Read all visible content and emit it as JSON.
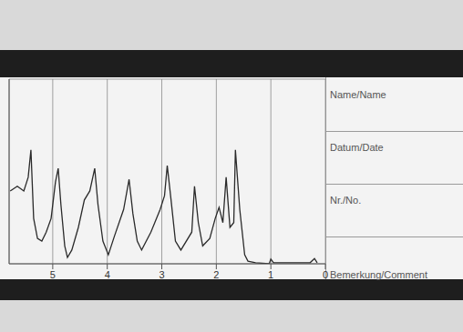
{
  "chart_data": {
    "type": "line",
    "xlim": [
      5.8,
      0
    ],
    "xticks": [
      5,
      4,
      3,
      2,
      1,
      0
    ],
    "ylim": [
      0,
      3.5
    ],
    "yticks": [
      0,
      1,
      2,
      3
    ],
    "grid": true,
    "tick_labels": "x",
    "color": "#2a2a2a",
    "x": [
      5.78,
      5.65,
      5.53,
      5.45,
      5.4,
      5.35,
      5.28,
      5.2,
      5.12,
      5.03,
      4.95,
      4.9,
      4.85,
      4.78,
      4.73,
      4.65,
      4.53,
      4.42,
      4.32,
      4.23,
      4.17,
      4.08,
      3.98,
      3.87,
      3.7,
      3.6,
      3.53,
      3.45,
      3.37,
      3.2,
      3.03,
      2.95,
      2.9,
      2.83,
      2.75,
      2.65,
      2.45,
      2.4,
      2.33,
      2.25,
      2.12,
      2.02,
      1.95,
      1.88,
      1.82,
      1.75,
      1.68,
      1.65,
      1.57,
      1.48,
      1.42,
      1.28,
      1.03,
      1.0,
      0.95,
      0.28,
      0.2,
      0.15
    ],
    "values": [
      1.38,
      1.47,
      1.38,
      1.64,
      2.16,
      0.86,
      0.48,
      0.43,
      0.6,
      0.86,
      1.55,
      1.81,
      1.12,
      0.34,
      0.12,
      0.26,
      0.69,
      1.21,
      1.38,
      1.81,
      1.12,
      0.43,
      0.17,
      0.52,
      1.03,
      1.6,
      0.95,
      0.43,
      0.26,
      0.6,
      1.03,
      1.29,
      1.86,
      1.21,
      0.43,
      0.26,
      0.6,
      1.47,
      0.78,
      0.34,
      0.48,
      0.86,
      1.07,
      0.78,
      1.64,
      0.69,
      0.78,
      2.16,
      1.03,
      0.17,
      0.05,
      0.02,
      0,
      0.09,
      0.02,
      0.02,
      0.1,
      0.02
    ]
  },
  "form": {
    "fields": [
      "Name/Name",
      "Datum/Date",
      "Nr./No.",
      "Bemerkung/Comment"
    ]
  }
}
